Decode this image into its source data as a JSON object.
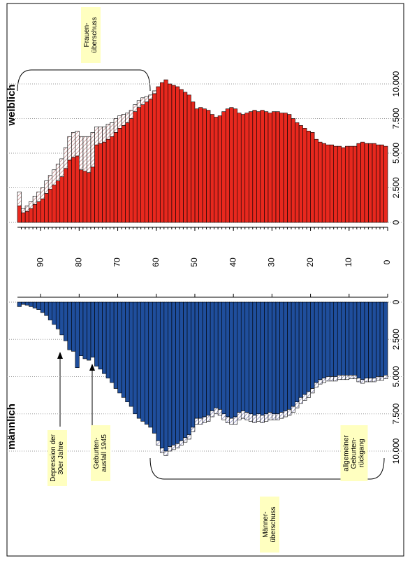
{
  "chart_data": {
    "type": "population_pyramid",
    "x": [
      0,
      1,
      2,
      3,
      4,
      5,
      6,
      7,
      8,
      9,
      10,
      11,
      12,
      13,
      14,
      15,
      16,
      17,
      18,
      19,
      20,
      21,
      22,
      23,
      24,
      25,
      26,
      27,
      28,
      29,
      30,
      31,
      32,
      33,
      34,
      35,
      36,
      37,
      38,
      39,
      40,
      41,
      42,
      43,
      44,
      45,
      46,
      47,
      48,
      49,
      50,
      51,
      52,
      53,
      54,
      55,
      56,
      57,
      58,
      59,
      60,
      61,
      62,
      63,
      64,
      65,
      66,
      67,
      68,
      69,
      70,
      71,
      72,
      73,
      74,
      75,
      76,
      77,
      78,
      79,
      80,
      81,
      82,
      83,
      84,
      85,
      86,
      87,
      88,
      89,
      90,
      91,
      92,
      93,
      94,
      95
    ],
    "xlim": [
      0,
      96
    ],
    "xticks": [
      0,
      10,
      20,
      30,
      40,
      50,
      60,
      70,
      80,
      90
    ],
    "panels": [
      {
        "label": "weiblich",
        "direction": "up",
        "ylim": [
          0,
          15000
        ],
        "yticks": [
          0,
          {
            "value": 2500,
            "label": "2.500"
          },
          {
            "value": 5000,
            "label": "5.000"
          },
          {
            "value": 7500,
            "label": "7.500"
          },
          {
            "value": 10000,
            "label": "10.000"
          }
        ],
        "series": [
          {
            "color": "#e8281e",
            "values": [
              5500,
              5600,
              5600,
              5700,
              5700,
              5700,
              5800,
              5700,
              5500,
              5500,
              5500,
              5400,
              5500,
              5500,
              5600,
              5600,
              5700,
              5800,
              6000,
              6500,
              6600,
              6800,
              7000,
              7200,
              7500,
              7800,
              7900,
              7900,
              8000,
              8000,
              7900,
              8000,
              8100,
              8000,
              8100,
              8000,
              7900,
              7800,
              7900,
              8200,
              8300,
              8200,
              8000,
              7700,
              7600,
              7800,
              8100,
              8200,
              8300,
              8200,
              8700,
              9200,
              9400,
              9600,
              9800,
              9900,
              10000,
              10300,
              10100,
              9800,
              9300,
              8900,
              8700,
              8500,
              8300,
              8000,
              7500,
              7200,
              7000,
              6800,
              6500,
              6200,
              6000,
              5800,
              5700,
              5600,
              4000,
              3600,
              3700,
              3800,
              4800,
              4700,
              4500,
              3900,
              3300,
              3000,
              2700,
              2400,
              2100,
              1700,
              1500,
              1300,
              1000,
              800,
              700,
              1200
            ]
          },
          {
            "color": "#d9a0a0",
            "pattern": "hatch",
            "values": [
              0,
              0,
              0,
              0,
              0,
              0,
              0,
              0,
              0,
              0,
              0,
              0,
              0,
              0,
              0,
              0,
              0,
              0,
              0,
              0,
              0,
              0,
              0,
              0,
              0,
              0,
              0,
              0,
              0,
              0,
              0,
              0,
              0,
              0,
              0,
              0,
              0,
              0,
              0,
              0,
              0,
              0,
              0,
              0,
              0,
              0,
              0,
              0,
              0,
              0,
              0,
              0,
              0,
              0,
              0,
              0,
              0,
              0,
              0,
              0,
              200,
              300,
              400,
              500,
              500,
              500,
              600,
              700,
              800,
              900,
              1000,
              1000,
              1100,
              1100,
              1200,
              1300,
              2500,
              2600,
              2500,
              2400,
              1800,
              1800,
              1700,
              1500,
              1300,
              1200,
              1100,
              1000,
              900,
              800,
              700,
              600,
              500,
              400,
              300,
              1000
            ]
          }
        ]
      },
      {
        "label": "männlich",
        "direction": "down",
        "ylim": [
          0,
          15000
        ],
        "yticks": [
          0,
          {
            "value": 2500,
            "label": "2.500"
          },
          {
            "value": 5000,
            "label": "5.000"
          },
          {
            "value": 7500,
            "label": "7.500"
          },
          {
            "value": 10000,
            "label": "10.000"
          }
        ],
        "series": [
          {
            "color": "#1f4e9c",
            "values": [
              4900,
              5000,
              5000,
              5100,
              5100,
              5100,
              5200,
              5100,
              4900,
              4900,
              4900,
              4900,
              4900,
              5000,
              5000,
              5000,
              5100,
              5200,
              5400,
              5800,
              6000,
              6200,
              6400,
              6700,
              7000,
              7200,
              7300,
              7400,
              7500,
              7500,
              7400,
              7500,
              7600,
              7500,
              7600,
              7500,
              7400,
              7300,
              7400,
              7700,
              7800,
              7700,
              7500,
              7200,
              7100,
              7300,
              7600,
              7700,
              7800,
              7800,
              8400,
              8900,
              9100,
              9300,
              9500,
              9600,
              9700,
              10000,
              9800,
              9300,
              8800,
              8400,
              8200,
              8000,
              7800,
              7500,
              7000,
              6700,
              6400,
              6100,
              5800,
              5400,
              5100,
              4800,
              4500,
              4300,
              3700,
              3900,
              3800,
              3600,
              4400,
              3300,
              3200,
              2600,
              2200,
              1800,
              1500,
              1200,
              900,
              700,
              500,
              400,
              300,
              200,
              150,
              300
            ]
          },
          {
            "color": "#a8a0d0",
            "pattern": "hatch",
            "values": [
              250,
              250,
              250,
              250,
              250,
              250,
              250,
              250,
              250,
              250,
              300,
              300,
              300,
              300,
              300,
              300,
              300,
              300,
              300,
              300,
              400,
              400,
              400,
              400,
              400,
              400,
              400,
              400,
              400,
              400,
              500,
              500,
              500,
              500,
              500,
              500,
              500,
              500,
              500,
              500,
              400,
              400,
              400,
              400,
              400,
              400,
              400,
              400,
              400,
              400,
              300,
              300,
              300,
              300,
              300,
              300,
              300,
              300,
              300,
              300,
              0,
              0,
              0,
              0,
              0,
              0,
              0,
              0,
              0,
              0,
              0,
              0,
              0,
              0,
              0,
              0,
              0,
              0,
              0,
              0,
              0,
              0,
              0,
              0,
              0,
              0,
              0,
              0,
              0,
              0,
              0,
              0,
              0,
              0,
              0,
              0
            ]
          }
        ]
      }
    ],
    "annotations": [
      {
        "lines": [
          "Frauen-",
          "überschuss"
        ]
      },
      {
        "lines": [
          "Depression der",
          "30er Jahre"
        ]
      },
      {
        "lines": [
          "Geburten-",
          "ausfall 1945"
        ]
      },
      {
        "lines": [
          "Männer-",
          "überschuss"
        ]
      },
      {
        "lines": [
          "allgemeiner",
          "Geburten-",
          "rückgang"
        ]
      }
    ]
  }
}
